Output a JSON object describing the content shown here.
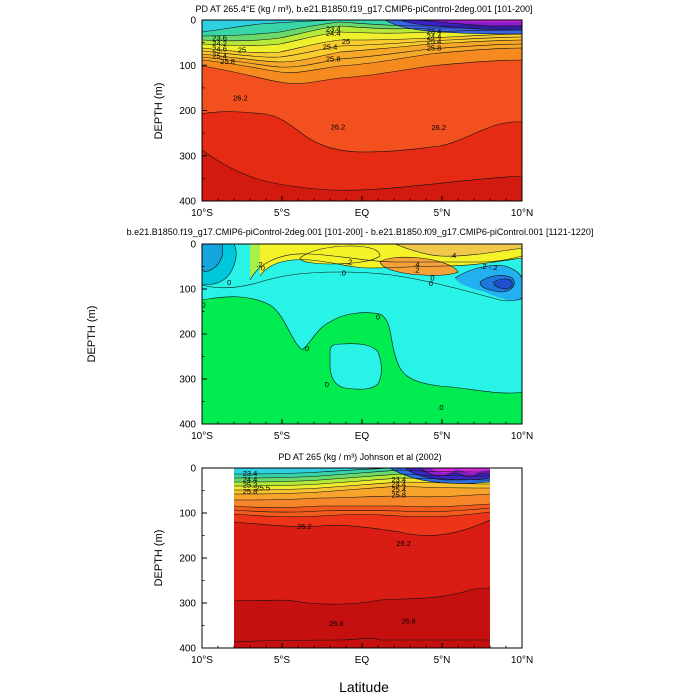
{
  "chart_data": [
    {
      "type": "contour",
      "title": "PD AT 265.4°E (kg / m³), b.e21.B1850.f19_g17.CMIP6-piControl-2deg.001 [101-200]",
      "ylabel": "DEPTH (m)",
      "xlabel": "",
      "x_ticks": [
        "10°S",
        "5°S",
        "EQ",
        "5°N",
        "10°N"
      ],
      "y_ticks": [
        "0",
        "100",
        "200",
        "300",
        "400"
      ],
      "xlim": [
        -10,
        10
      ],
      "ylim": [
        400,
        0
      ],
      "levels": [
        22.2,
        22.6,
        23.0,
        23.2,
        23.4,
        23.6,
        23.8,
        24.0,
        24.2,
        24.4,
        24.6,
        24.8,
        25.0,
        25.2,
        25.4,
        25.6,
        25.8,
        26.0,
        26.2,
        26.4,
        26.6
      ],
      "contour_labels": [
        {
          "text": "23.6",
          "x": -8.9,
          "y": 40
        },
        {
          "text": "24.2",
          "x": -8.9,
          "y": 52
        },
        {
          "text": "24.6",
          "x": -8.9,
          "y": 64
        },
        {
          "text": "25",
          "x": -7.5,
          "y": 66
        },
        {
          "text": "25.4",
          "x": -8.9,
          "y": 80
        },
        {
          "text": "25.8",
          "x": -8.4,
          "y": 92
        },
        {
          "text": "23.4",
          "x": -1.8,
          "y": 20
        },
        {
          "text": "24.4",
          "x": -1.8,
          "y": 30
        },
        {
          "text": "25",
          "x": -1.0,
          "y": 48
        },
        {
          "text": "25.4",
          "x": -2.0,
          "y": 60
        },
        {
          "text": "25.8",
          "x": -1.8,
          "y": 86
        },
        {
          "text": "23.4",
          "x": 4.5,
          "y": 25
        },
        {
          "text": "24.4",
          "x": 4.5,
          "y": 36
        },
        {
          "text": "25.4",
          "x": 4.5,
          "y": 48
        },
        {
          "text": "25.8",
          "x": 4.5,
          "y": 62
        },
        {
          "text": "26.2",
          "x": -7.6,
          "y": 172
        },
        {
          "text": "26.2",
          "x": -1.5,
          "y": 237
        },
        {
          "text": "26.2",
          "x": 4.8,
          "y": 238
        }
      ]
    },
    {
      "type": "contour",
      "title": "b.e21.B1850.f19_g17.CMIP6-piControl-2deg.001 [101-200] - b.e21.B1850.f09_g17.CMIP6-piControl.001 [1121-1220]",
      "ylabel": "DEPTH (m)",
      "xlabel": "",
      "x_ticks": [
        "10°S",
        "5°S",
        "EQ",
        "5°N",
        "10°N"
      ],
      "y_ticks": [
        "0",
        "100",
        "200",
        "300",
        "400"
      ],
      "xlim": [
        -10,
        10
      ],
      "ylim": [
        400,
        0
      ],
      "levels": [
        -0.8,
        -0.6,
        -0.4,
        -0.2,
        0,
        0.2,
        0.4,
        0.6
      ],
      "contour_labels": [
        {
          "text": ".2",
          "x": -6.4,
          "y": 45
        },
        {
          "text": ".2",
          "x": -0.8,
          "y": 40
        },
        {
          "text": ".0",
          "x": -1.2,
          "y": 64
        },
        {
          "text": ".4",
          "x": 3.4,
          "y": 46
        },
        {
          "text": ".4",
          "x": 5.7,
          "y": 25
        },
        {
          "text": ".2",
          "x": 3.4,
          "y": 58
        },
        {
          "text": ".2",
          "x": 7.6,
          "y": 50
        },
        {
          "text": "0",
          "x": -8.3,
          "y": 86
        },
        {
          "text": "0",
          "x": -6.2,
          "y": 53
        },
        {
          "text": "0",
          "x": 4.3,
          "y": 88
        },
        {
          "text": "0",
          "x": 4.4,
          "y": 75
        },
        {
          "text": "-.2",
          "x": 8.2,
          "y": 52
        },
        {
          "text": "0",
          "x": -9.9,
          "y": 136
        },
        {
          "text": ".0",
          "x": -3.5,
          "y": 232
        },
        {
          "text": "0",
          "x": 1.0,
          "y": 162
        },
        {
          "text": "0",
          "x": -2.2,
          "y": 312
        },
        {
          "text": ".0",
          "x": 4.9,
          "y": 363
        }
      ]
    },
    {
      "type": "contour",
      "title": "PD AT 265 (kg / m³) Johnson et al (2002)",
      "ylabel": "DEPTH (m)",
      "xlabel": "Latitude",
      "x_ticks": [
        "10°S",
        "5°S",
        "EQ",
        "5°N",
        "10°N"
      ],
      "y_ticks": [
        "0",
        "100",
        "200",
        "300",
        "400"
      ],
      "xlim": [
        -10,
        10
      ],
      "ylim": [
        400,
        0
      ],
      "data_extent_lat": [
        -8,
        8
      ],
      "levels": [
        22.2,
        22.6,
        23.0,
        23.4,
        23.8,
        24.2,
        24.6,
        25.0,
        25.4,
        25.8,
        26.2,
        26.6
      ],
      "contour_labels": [
        {
          "text": "23.4",
          "x": -7.0,
          "y": 12
        },
        {
          "text": "24.4",
          "x": -7.0,
          "y": 26
        },
        {
          "text": "25.2",
          "x": -7.0,
          "y": 38
        },
        {
          "text": "25.5",
          "x": -6.2,
          "y": 44
        },
        {
          "text": "25.8",
          "x": -7.0,
          "y": 52
        },
        {
          "text": "23.4",
          "x": 2.3,
          "y": 26
        },
        {
          "text": "24.4",
          "x": 2.3,
          "y": 36
        },
        {
          "text": "25.4",
          "x": 2.3,
          "y": 48
        },
        {
          "text": "25.8",
          "x": 2.3,
          "y": 60
        },
        {
          "text": "26.2",
          "x": -3.6,
          "y": 130
        },
        {
          "text": "26.2",
          "x": 2.6,
          "y": 168
        },
        {
          "text": "26.6",
          "x": -1.6,
          "y": 345
        },
        {
          "text": "26.6",
          "x": 2.9,
          "y": 340
        }
      ]
    }
  ]
}
